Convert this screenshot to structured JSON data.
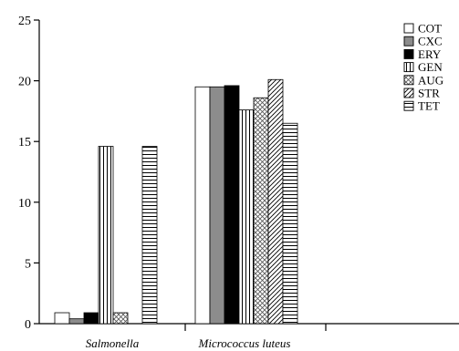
{
  "chart_data": {
    "type": "bar",
    "categories": [
      "Salmonella",
      "Micrococcus luteus",
      ""
    ],
    "series": [
      {
        "name": "COT",
        "values": [
          0.9,
          19.5,
          0
        ],
        "pattern": "white"
      },
      {
        "name": "CXC",
        "values": [
          0.4,
          19.5,
          0
        ],
        "pattern": "gray"
      },
      {
        "name": "ERY",
        "values": [
          0.9,
          19.6,
          0
        ],
        "pattern": "black"
      },
      {
        "name": "GEN",
        "values": [
          14.6,
          17.6,
          0
        ],
        "pattern": "vertical"
      },
      {
        "name": "AUG",
        "values": [
          0.9,
          18.6,
          0
        ],
        "pattern": "crosshatch"
      },
      {
        "name": "STR",
        "values": [
          0,
          20.1,
          0
        ],
        "pattern": "diagonal"
      },
      {
        "name": "TET",
        "values": [
          14.6,
          16.5,
          0
        ],
        "pattern": "horizontal"
      }
    ],
    "y_ticks": [
      "0",
      "5",
      "10",
      "15",
      "20",
      "25"
    ],
    "ylim": [
      0,
      25
    ],
    "legend_position": "top-right",
    "grid": false,
    "xlabel": "",
    "ylabel": "",
    "title": ""
  },
  "colors": {
    "axis": "#000000",
    "bar_stroke": "#000000",
    "gray_fill": "#8c8c8c",
    "black_fill": "#000000",
    "white_fill": "#ffffff"
  }
}
